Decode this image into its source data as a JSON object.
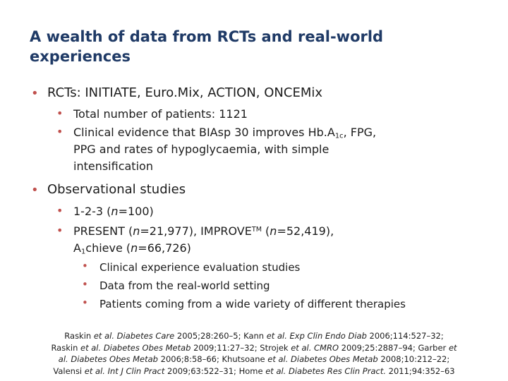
{
  "title": "A wealth of data from RCTs and real-world experiences",
  "colors": {
    "title": "#1f3a66",
    "bullet": "#c0504d"
  },
  "sections": [
    {
      "heading": "RCTs: INITIATE, Euro.Mix, ACTION, ONCEMix",
      "items": [
        {
          "text": "Total number of patients: 1121"
        },
        {
          "pre": "Clinical evidence that BIAsp 30 improves Hb.A",
          "sub": "1c",
          "post_line1": ", FPG,",
          "line2": "PPG and rates of hypoglycaemia, with simple",
          "line3": "intensification"
        }
      ]
    },
    {
      "heading": "Observational studies",
      "items": [
        {
          "pre": "1-2-3 (",
          "n_label": "n",
          "post": "=100)"
        },
        {
          "pre": "PRESENT (",
          "n1_label": "n",
          "n1_value": "=21,977), IMPROVE",
          "tm": "TM",
          "mid": " (",
          "n2_label": "n",
          "n2_value": "=52,419),",
          "line2_pre": "A",
          "line2_sub": "1",
          "line2_mid": "chieve (",
          "n3_label": "n",
          "n3_value": "=66,726)"
        }
      ],
      "subitems": [
        "Clinical experience evaluation studies",
        "Data from the real-world setting",
        "Patients coming from a wide variety of different therapies"
      ]
    }
  ],
  "references": {
    "line1": [
      {
        "t": "Raskin "
      },
      {
        "t": "et al.",
        "i": true
      },
      {
        "t": " "
      },
      {
        "t": "Diabetes Care",
        "i": true
      },
      {
        "t": " 2005;28:260–5; Kann "
      },
      {
        "t": "et al.",
        "i": true
      },
      {
        "t": " "
      },
      {
        "t": "Exp Clin Endo Diab",
        "i": true
      },
      {
        "t": " 2006;114:527–32;"
      }
    ],
    "line2": [
      {
        "t": "Raskin "
      },
      {
        "t": "et al.",
        "i": true
      },
      {
        "t": " "
      },
      {
        "t": "Diabetes Obes Metab",
        "i": true
      },
      {
        "t": " 2009;11:27–32;  Strojek "
      },
      {
        "t": "et al.",
        "i": true
      },
      {
        "t": " "
      },
      {
        "t": "CMRO",
        "i": true
      },
      {
        "t": " 2009;25:2887–94; Garber "
      },
      {
        "t": "et",
        "i": true
      }
    ],
    "line3": [
      {
        "t": "al.",
        "i": true
      },
      {
        "t": " "
      },
      {
        "t": "Diabetes Obes Metab",
        "i": true
      },
      {
        "t": " 2006;8:58–66; Khutsoane "
      },
      {
        "t": "et al.",
        "i": true
      },
      {
        "t": " "
      },
      {
        "t": "Diabetes Obes Metab",
        "i": true
      },
      {
        "t": " 2008;10:212–22;"
      }
    ],
    "line4": [
      {
        "t": "Valensi "
      },
      {
        "t": "et al.",
        "i": true
      },
      {
        "t": " "
      },
      {
        "t": "Int J Clin Pract",
        "i": true
      },
      {
        "t": " 2009;63:522–31; Home "
      },
      {
        "t": "et al.",
        "i": true
      },
      {
        "t": " "
      },
      {
        "t": "Diabetes Res Clin Pract.",
        "i": true
      },
      {
        "t": " 2011;94:352–63"
      }
    ]
  }
}
